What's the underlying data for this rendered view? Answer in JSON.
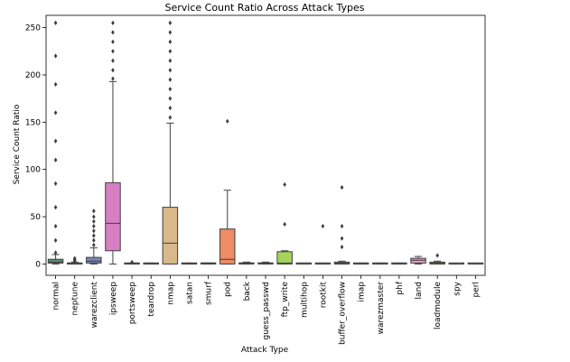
{
  "chart_data": {
    "type": "box",
    "title": "Service Count Ratio Across Attack Types",
    "xlabel": "Attack Type",
    "ylabel": "Service Count Ratio",
    "ylim": [
      -12,
      263
    ],
    "yticks": [
      0,
      50,
      100,
      150,
      200,
      250
    ],
    "grid": false,
    "legend": "none",
    "outlier_marker": "diamond",
    "categories": [
      "normal",
      "neptune",
      "warezclient",
      "ipsweep",
      "portsweep",
      "teardrop",
      "nmap",
      "satan",
      "smurf",
      "pod",
      "back",
      "guess_passwd",
      "ftp_write",
      "multihop",
      "rootkit",
      "buffer_overflow",
      "imap",
      "warezmaster",
      "phf",
      "land",
      "loadmodule",
      "spy",
      "perl"
    ],
    "colors": [
      "#5b8f6e",
      "#c97e4c",
      "#7c88b3",
      "#d77fc2",
      "#7e9e53",
      "#c9ab58",
      "#d9b98a",
      "#8c8c8c",
      "#6f9ebf",
      "#ee8c64",
      "#7fa6c9",
      "#cc8cc3",
      "#a6d45a",
      "#f5d06b",
      "#d9c49c",
      "#b3b3b3",
      "#7fbfa6",
      "#f2a584",
      "#9ba9cf",
      "#e498c7",
      "#b8dd7a",
      "#fbe088",
      "#e6cfa8"
    ],
    "boxes": [
      {
        "category": "normal",
        "whisker_low": 0,
        "q1": 1,
        "median": 2,
        "q3": 5,
        "whisker_high": 10,
        "outliers": [
          12,
          25,
          40,
          60,
          85,
          110,
          130,
          160,
          190,
          220,
          255
        ]
      },
      {
        "category": "neptune",
        "whisker_low": 0,
        "q1": 0,
        "median": 0,
        "q3": 1,
        "whisker_high": 2,
        "outliers": [
          3,
          4,
          5,
          6
        ]
      },
      {
        "category": "warezclient",
        "whisker_low": 0,
        "q1": 1,
        "median": 3,
        "q3": 7,
        "whisker_high": 17,
        "outliers": [
          20,
          25,
          30,
          35,
          40,
          45,
          50,
          56
        ]
      },
      {
        "category": "ipsweep",
        "whisker_low": 0,
        "q1": 14,
        "median": 43,
        "q3": 86,
        "whisker_high": 193,
        "outliers": [
          196,
          205,
          215,
          225,
          235,
          245,
          255
        ]
      },
      {
        "category": "portsweep",
        "whisker_low": 0,
        "q1": 0,
        "median": 0,
        "q3": 1,
        "whisker_high": 1,
        "outliers": [
          2
        ]
      },
      {
        "category": "teardrop",
        "whisker_low": 0,
        "q1": 0,
        "median": 0,
        "q3": 1,
        "whisker_high": 1,
        "outliers": []
      },
      {
        "category": "nmap",
        "whisker_low": 0,
        "q1": 0,
        "median": 22,
        "q3": 60,
        "whisker_high": 149,
        "outliers": [
          155,
          165,
          175,
          185,
          195,
          205,
          215,
          225,
          235,
          245,
          255
        ]
      },
      {
        "category": "satan",
        "whisker_low": 0,
        "q1": 0,
        "median": 0,
        "q3": 1,
        "whisker_high": 1,
        "outliers": []
      },
      {
        "category": "smurf",
        "whisker_low": 0,
        "q1": 0,
        "median": 1,
        "q3": 1,
        "whisker_high": 1,
        "outliers": []
      },
      {
        "category": "pod",
        "whisker_low": 0,
        "q1": 0,
        "median": 5,
        "q3": 37,
        "whisker_high": 78,
        "outliers": [
          151
        ]
      },
      {
        "category": "back",
        "whisker_low": 0,
        "q1": 0,
        "median": 1,
        "q3": 1,
        "whisker_high": 2,
        "outliers": []
      },
      {
        "category": "guess_passwd",
        "whisker_low": 0,
        "q1": 0,
        "median": 1,
        "q3": 1,
        "whisker_high": 2,
        "outliers": []
      },
      {
        "category": "ftp_write",
        "whisker_low": 0,
        "q1": 0,
        "median": 1,
        "q3": 13,
        "whisker_high": 14,
        "outliers": [
          42,
          84
        ]
      },
      {
        "category": "multihop",
        "whisker_low": 0,
        "q1": 0,
        "median": 0,
        "q3": 1,
        "whisker_high": 1,
        "outliers": []
      },
      {
        "category": "rootkit",
        "whisker_low": 0,
        "q1": 0,
        "median": 0,
        "q3": 1,
        "whisker_high": 1,
        "outliers": [
          40
        ]
      },
      {
        "category": "buffer_overflow",
        "whisker_low": 0,
        "q1": 0,
        "median": 1,
        "q3": 2,
        "whisker_high": 3,
        "outliers": [
          18,
          27,
          40,
          81
        ]
      },
      {
        "category": "imap",
        "whisker_low": 0,
        "q1": 0,
        "median": 0,
        "q3": 1,
        "whisker_high": 1,
        "outliers": []
      },
      {
        "category": "warezmaster",
        "whisker_low": 0,
        "q1": 0,
        "median": 0,
        "q3": 1,
        "whisker_high": 1,
        "outliers": []
      },
      {
        "category": "phf",
        "whisker_low": 0,
        "q1": 0,
        "median": 0,
        "q3": 1,
        "whisker_high": 1,
        "outliers": []
      },
      {
        "category": "land",
        "whisker_low": 0,
        "q1": 1,
        "median": 4,
        "q3": 6,
        "whisker_high": 8,
        "outliers": []
      },
      {
        "category": "loadmodule",
        "whisker_low": 0,
        "q1": 0,
        "median": 1,
        "q3": 2,
        "whisker_high": 3,
        "outliers": [
          9
        ]
      },
      {
        "category": "spy",
        "whisker_low": 0,
        "q1": 0,
        "median": 0,
        "q3": 0,
        "whisker_high": 0,
        "outliers": []
      },
      {
        "category": "perl",
        "whisker_low": 0,
        "q1": 0,
        "median": 0,
        "q3": 0,
        "whisker_high": 0,
        "outliers": []
      }
    ]
  }
}
